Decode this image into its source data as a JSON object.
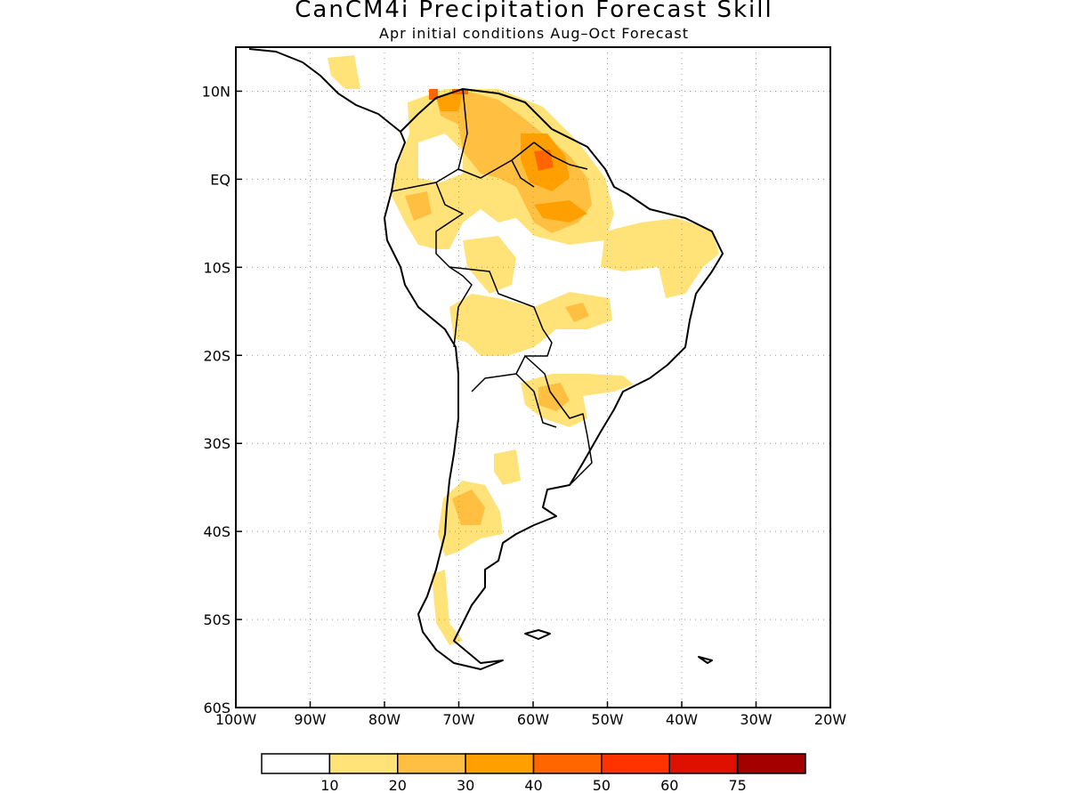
{
  "title": "CanCM4i Precipitation Forecast Skill",
  "subtitle": "Apr initial conditions  Aug–Oct Forecast",
  "map": {
    "lon_range": [
      -100,
      -20
    ],
    "lat_range": [
      -60,
      15
    ],
    "lon_ticks": [
      {
        "value": -100,
        "label": "100W"
      },
      {
        "value": -90,
        "label": "90W"
      },
      {
        "value": -80,
        "label": "80W"
      },
      {
        "value": -70,
        "label": "70W"
      },
      {
        "value": -60,
        "label": "60W"
      },
      {
        "value": -50,
        "label": "50W"
      },
      {
        "value": -40,
        "label": "40W"
      },
      {
        "value": -30,
        "label": "30W"
      },
      {
        "value": -20,
        "label": "20W"
      }
    ],
    "lat_ticks": [
      {
        "value": 10,
        "label": "10N"
      },
      {
        "value": 0,
        "label": "EQ"
      },
      {
        "value": -10,
        "label": "10S"
      },
      {
        "value": -20,
        "label": "20S"
      },
      {
        "value": -30,
        "label": "30S"
      },
      {
        "value": -40,
        "label": "40S"
      },
      {
        "value": -50,
        "label": "50S"
      },
      {
        "value": -60,
        "label": "60S"
      }
    ],
    "grid": "dotted"
  },
  "colorbar": {
    "colors": [
      "#ffffff",
      "#ffe278",
      "#ffbf40",
      "#ffa000",
      "#ff6600",
      "#ff3300",
      "#e01000",
      "#a50000"
    ],
    "labels": [
      "10",
      "20",
      "30",
      "40",
      "50",
      "60",
      "75"
    ]
  }
}
